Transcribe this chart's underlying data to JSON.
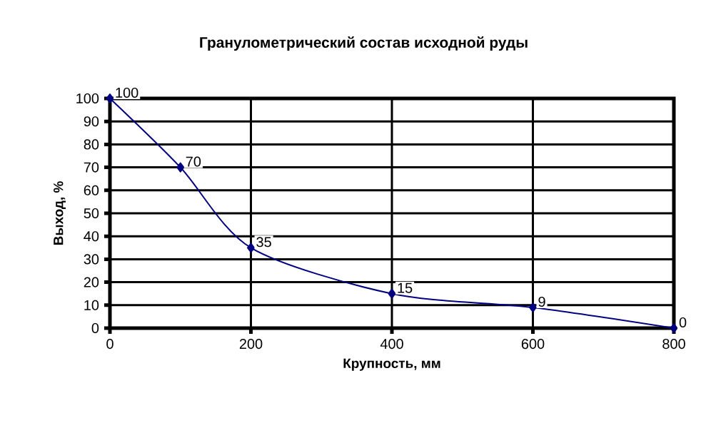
{
  "chart_data": {
    "type": "line",
    "title": "Гранулометрический состав исходной руды",
    "xlabel": "Крупность, мм",
    "ylabel": "Выход, %",
    "x": [
      0,
      100,
      200,
      400,
      600,
      800
    ],
    "series": [
      {
        "color": "#000080",
        "values": [
          100,
          70,
          35,
          15,
          9,
          0
        ]
      }
    ],
    "xlim": [
      0,
      800
    ],
    "ylim": [
      0,
      100
    ],
    "xticks": [
      0,
      200,
      400,
      600,
      800
    ],
    "yticks": [
      0,
      10,
      20,
      30,
      40,
      50,
      60,
      70,
      80,
      90,
      100
    ],
    "grid": true,
    "marker": "diamond",
    "line_style": "solid",
    "data_labels": true
  }
}
